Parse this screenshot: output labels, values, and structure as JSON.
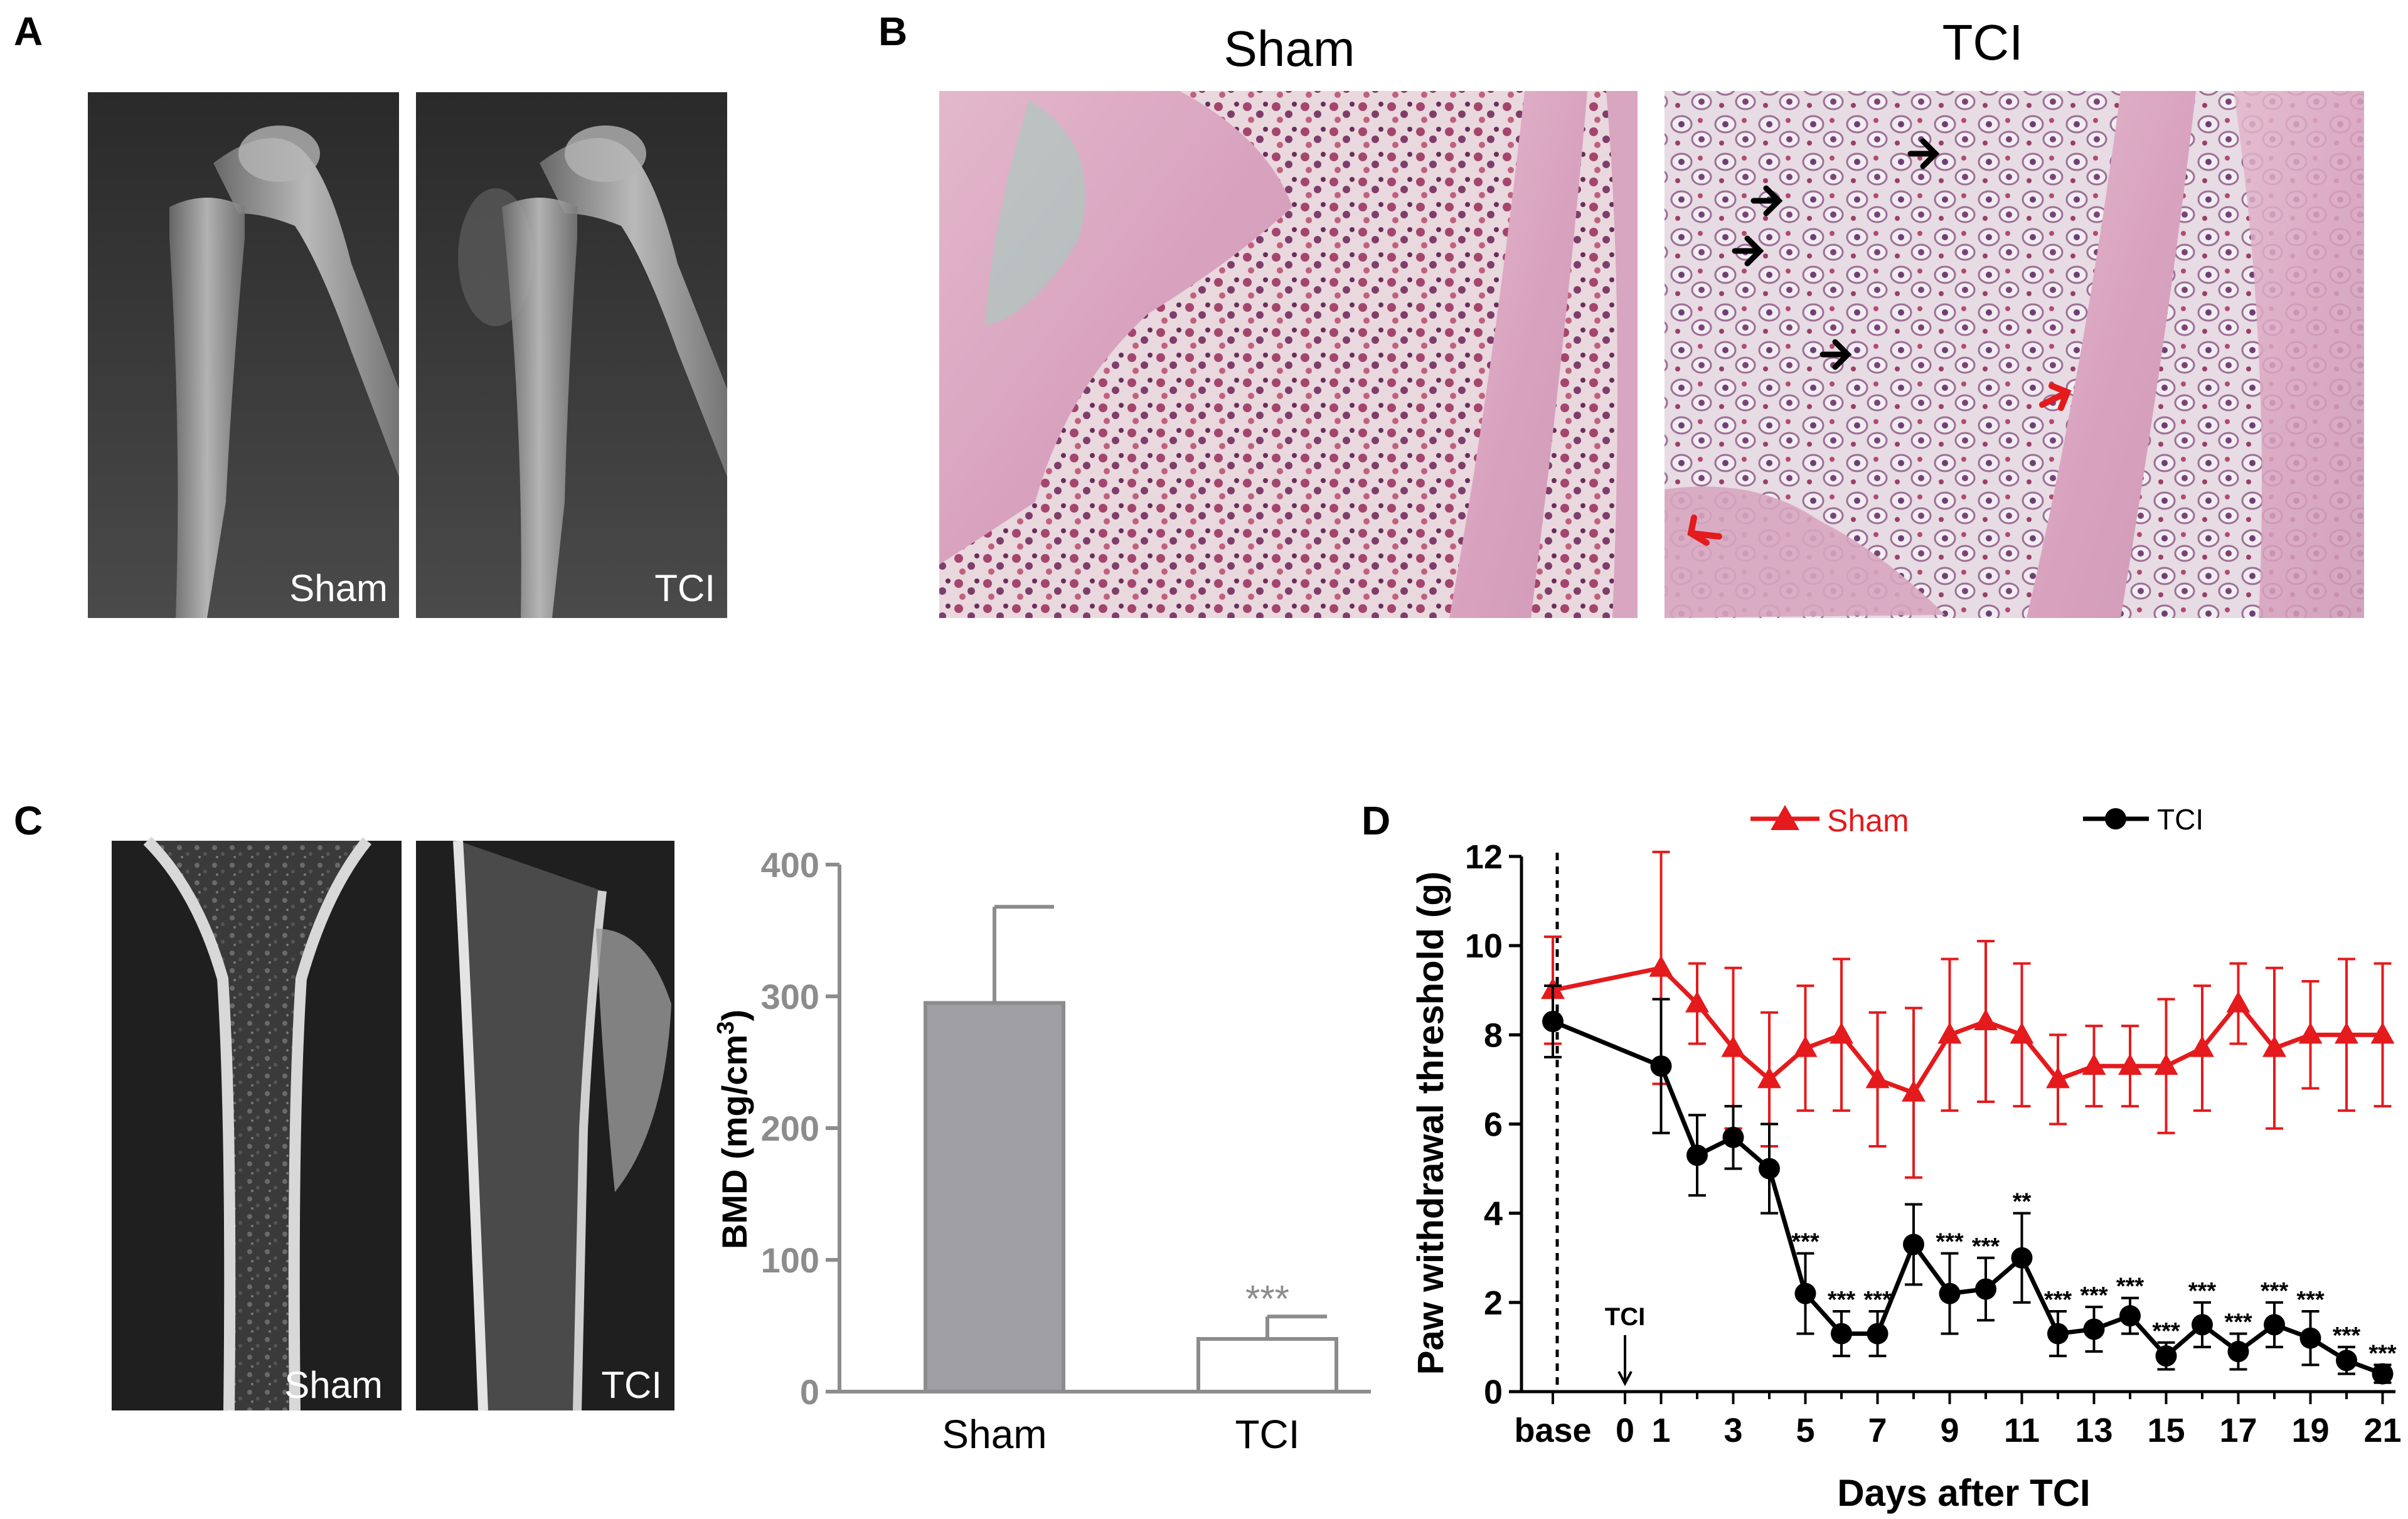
{
  "panels": {
    "A": {
      "letter": "A",
      "images": [
        {
          "label": "Sham",
          "icon": "xray-knee-sham"
        },
        {
          "label": "TCI",
          "icon": "xray-knee-tci"
        }
      ]
    },
    "B": {
      "letter": "B",
      "images": [
        {
          "title": "Sham",
          "icon": "histology-sham"
        },
        {
          "title": "TCI",
          "icon": "histology-tci"
        }
      ]
    },
    "C": {
      "letter": "C",
      "images": [
        {
          "label": "Sham",
          "icon": "microct-sham"
        },
        {
          "label": "TCI",
          "icon": "microct-tci"
        }
      ]
    },
    "D": {
      "letter": "D"
    }
  },
  "colors": {
    "sham": "#e41a1c",
    "tci": "#000000",
    "bar_sham": "#9e9ea3",
    "bar_tci": "#ffffff",
    "axis_gray": "#8c8c8c"
  },
  "chart_data": [
    {
      "type": "bar",
      "panel": "C",
      "categories": [
        "Sham",
        "TCI"
      ],
      "values": [
        295,
        40
      ],
      "errors": [
        73,
        17
      ],
      "annotations": [
        "",
        "***"
      ],
      "ylabel": "BMD (mg/cm3)",
      "ylabel_main": "BMD (mg/cm",
      "ylabel_sup": "3",
      "ylabel_tail": ")",
      "ylim": [
        0,
        400
      ],
      "yticks": [
        "0",
        "100",
        "200",
        "300",
        "400"
      ],
      "xlabel": ""
    },
    {
      "type": "line",
      "panel": "D",
      "xlabel": "Days after TCI",
      "ylabel": "Paw withdrawal threshold (g)",
      "ylim": [
        0,
        12
      ],
      "yticks": [
        "0",
        "2",
        "4",
        "6",
        "8",
        "10",
        "12"
      ],
      "xticks": [
        "base",
        "0",
        "1",
        "3",
        "5",
        "7",
        "9",
        "11",
        "13",
        "15",
        "17",
        "19",
        "21"
      ],
      "arrow_label": "TCI",
      "legend": {
        "position": "top",
        "entries": [
          "Sham",
          "TCI"
        ]
      },
      "x": [
        "base",
        1,
        2,
        3,
        4,
        5,
        6,
        7,
        8,
        9,
        10,
        11,
        12,
        13,
        14,
        15,
        16,
        17,
        18,
        19,
        20,
        21
      ],
      "series": [
        {
          "name": "Sham",
          "marker": "triangle",
          "values": [
            9.0,
            9.5,
            8.7,
            7.7,
            7.0,
            7.7,
            8.0,
            7.0,
            6.7,
            8.0,
            8.3,
            8.0,
            7.0,
            7.3,
            7.3,
            7.3,
            7.7,
            8.7,
            7.7,
            8.0,
            8.0,
            8.0
          ],
          "errors": [
            1.2,
            2.6,
            0.9,
            1.8,
            1.5,
            1.4,
            1.7,
            1.5,
            1.9,
            1.7,
            1.8,
            1.6,
            1.0,
            0.9,
            0.9,
            1.5,
            1.4,
            0.9,
            1.8,
            1.2,
            1.7,
            1.6
          ]
        },
        {
          "name": "TCI",
          "marker": "circle",
          "values": [
            8.3,
            7.3,
            5.3,
            5.7,
            5.0,
            2.2,
            1.3,
            1.3,
            3.3,
            2.2,
            2.3,
            3.0,
            1.3,
            1.4,
            1.7,
            0.8,
            1.5,
            0.9,
            1.5,
            1.2,
            0.7,
            0.4
          ],
          "errors": [
            0.8,
            1.5,
            0.9,
            0.7,
            1.0,
            0.9,
            0.5,
            0.5,
            0.9,
            0.9,
            0.7,
            1.0,
            0.5,
            0.5,
            0.4,
            0.3,
            0.5,
            0.4,
            0.5,
            0.6,
            0.3,
            0.2
          ],
          "annotations": [
            "",
            "",
            "",
            "",
            "",
            "***",
            "***",
            "***",
            "",
            "***",
            "***",
            "**",
            "***",
            "***",
            "***",
            "***",
            "***",
            "***",
            "***",
            "***",
            "***",
            "***"
          ]
        }
      ]
    }
  ]
}
